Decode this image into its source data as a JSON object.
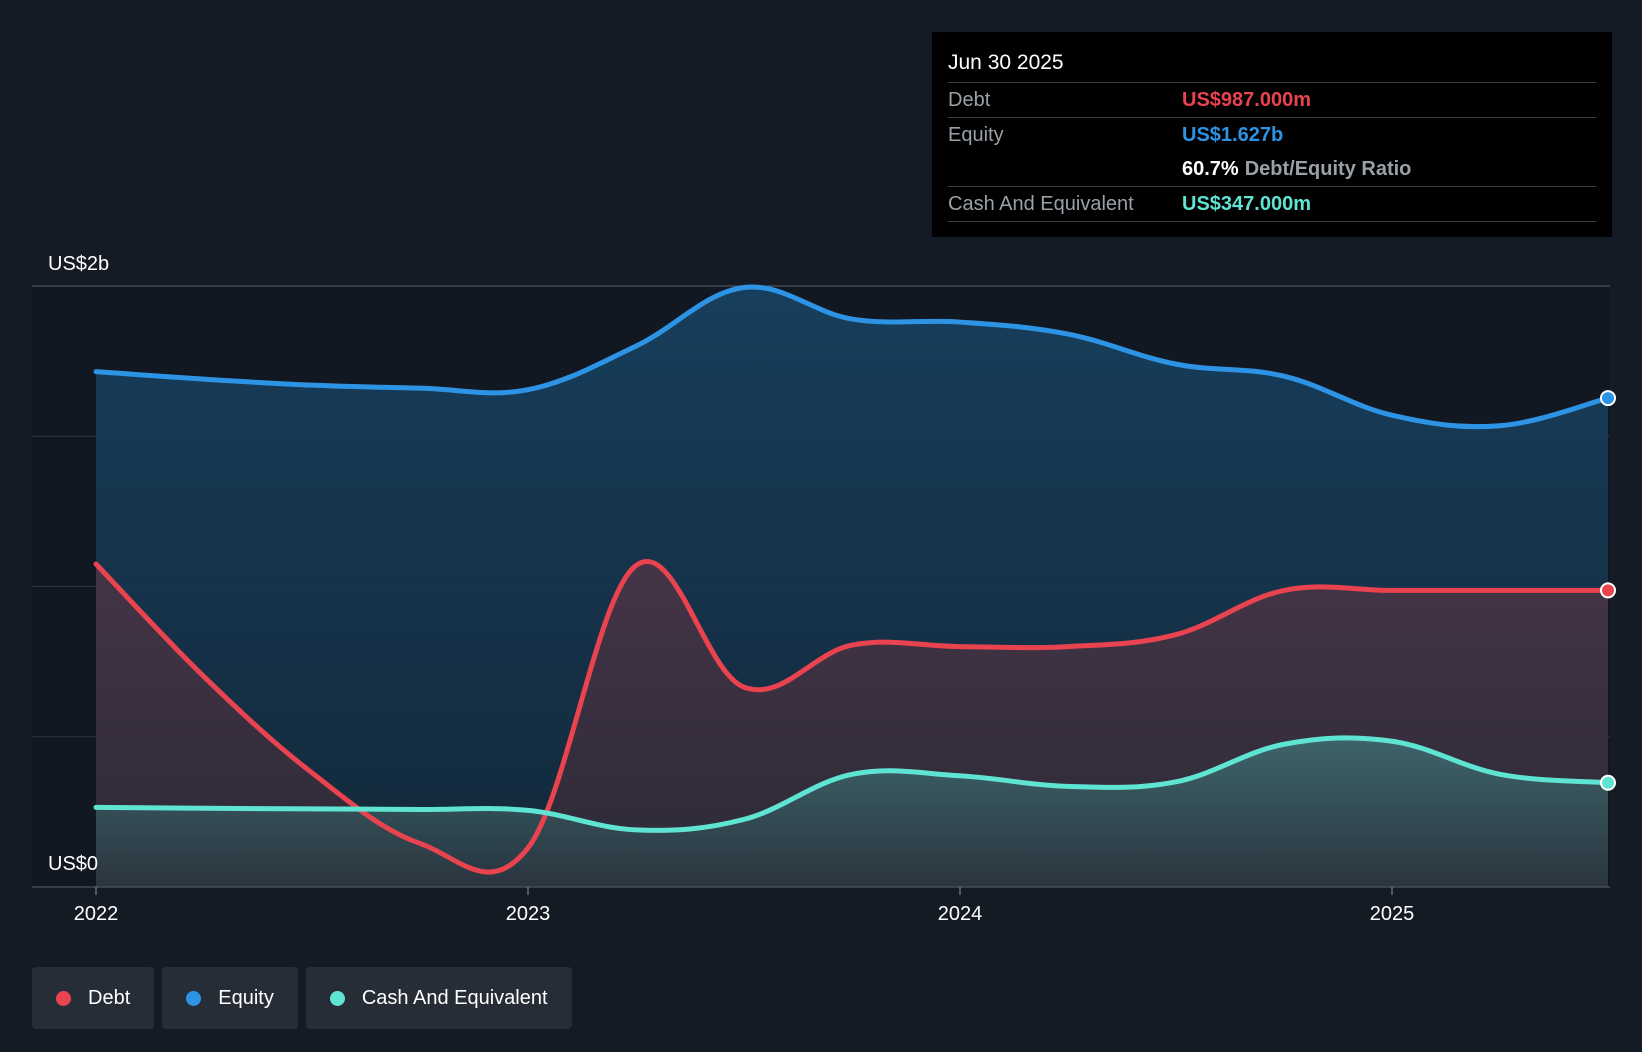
{
  "tooltip": {
    "date": "Jun 30 2025",
    "debt_label": "Debt",
    "debt_value": "US$987.000m",
    "equity_label": "Equity",
    "equity_value": "US$1.627b",
    "ratio_value": "60.7%",
    "ratio_label": "Debt/Equity Ratio",
    "cash_label": "Cash And Equivalent",
    "cash_value": "US$347.000m"
  },
  "legend": {
    "debt": "Debt",
    "equity": "Equity",
    "cash": "Cash And Equivalent"
  },
  "chart_data": {
    "type": "area",
    "title": "",
    "xlabel": "",
    "ylabel": "",
    "y_top_label": "US$2b",
    "y_bottom_label": "US$0",
    "ylim": [
      0,
      2000
    ],
    "xlim": [
      2022.0,
      2025.5
    ],
    "x_ticks": [
      {
        "value": 2022,
        "label": "2022"
      },
      {
        "value": 2023,
        "label": "2023"
      },
      {
        "value": 2024,
        "label": "2024"
      },
      {
        "value": 2025,
        "label": "2025"
      }
    ],
    "gridlines": [
      500,
      1000,
      1500,
      2000
    ],
    "colors": {
      "debt": "#e8434f",
      "equity": "#2d94e5",
      "cash": "#5fe3d3"
    },
    "series": [
      {
        "name": "Equity",
        "key": "equity",
        "x": [
          2022.0,
          2022.25,
          2022.5,
          2022.75,
          2023.0,
          2023.25,
          2023.5,
          2023.75,
          2024.0,
          2024.25,
          2024.5,
          2024.75,
          2025.0,
          2025.25,
          2025.5
        ],
        "values": [
          1715,
          1690,
          1670,
          1660,
          1655,
          1800,
          1995,
          1890,
          1880,
          1840,
          1740,
          1700,
          1570,
          1535,
          1627
        ]
      },
      {
        "name": "Debt",
        "key": "debt",
        "x": [
          2022.0,
          2022.25,
          2022.5,
          2022.75,
          2023.0,
          2023.25,
          2023.5,
          2023.75,
          2024.0,
          2024.25,
          2024.5,
          2024.75,
          2025.0,
          2025.25,
          2025.5
        ],
        "values": [
          1075,
          700,
          380,
          145,
          130,
          1070,
          665,
          805,
          800,
          800,
          840,
          987,
          987,
          987,
          987
        ]
      },
      {
        "name": "Cash And Equivalent",
        "key": "cash",
        "x": [
          2022.0,
          2022.25,
          2022.5,
          2022.75,
          2023.0,
          2023.25,
          2023.5,
          2023.75,
          2024.0,
          2024.25,
          2024.5,
          2024.75,
          2025.0,
          2025.25,
          2025.5
        ],
        "values": [
          265,
          262,
          260,
          258,
          255,
          190,
          225,
          375,
          370,
          335,
          350,
          475,
          485,
          375,
          347
        ]
      }
    ]
  }
}
